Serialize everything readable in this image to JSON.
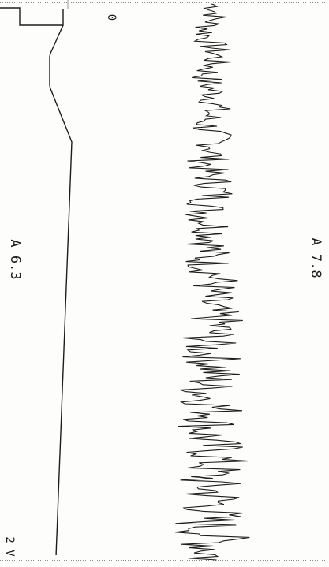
{
  "labels": {
    "upper_trace": "A 6.3",
    "lower_trace": "A 7.8",
    "zero_mark": "0",
    "volt_mark": "2 V"
  },
  "colors": {
    "ink": "#1c1c1c",
    "paper": "#fdfdfc",
    "grid_dots": "#8a8a8a"
  }
}
